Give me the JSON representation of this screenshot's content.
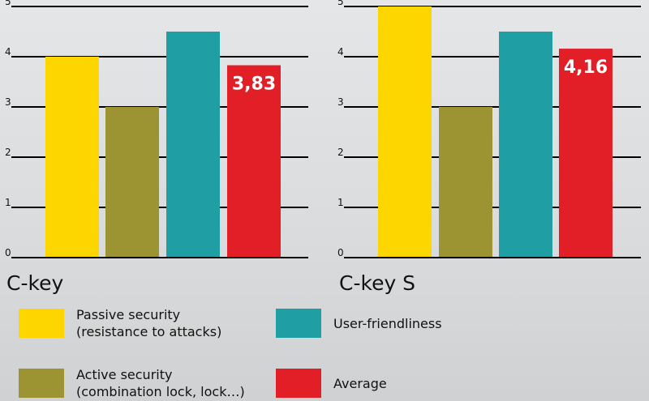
{
  "chart_data": [
    {
      "type": "bar",
      "title": "C-key",
      "categories": [
        "Passive security",
        "Active security",
        "User-friendliness",
        "Average"
      ],
      "values": [
        4.0,
        3.0,
        4.5,
        3.83
      ],
      "colors": [
        "#fdd600",
        "#9c9433",
        "#1f9ea3",
        "#e21f26"
      ],
      "data_labels": [
        "",
        "",
        "",
        "3,83"
      ],
      "ylim": [
        0,
        5
      ],
      "yticks": [
        "0",
        "1",
        "2",
        "3",
        "4",
        "5"
      ],
      "grid": true
    },
    {
      "type": "bar",
      "title": "C-key S",
      "categories": [
        "Passive security",
        "Active security",
        "User-friendliness",
        "Average"
      ],
      "values": [
        5.0,
        3.0,
        4.5,
        4.16
      ],
      "colors": [
        "#fdd600",
        "#9c9433",
        "#1f9ea3",
        "#e21f26"
      ],
      "data_labels": [
        "",
        "",
        "",
        "4,16"
      ],
      "ylim": [
        0,
        5
      ],
      "yticks": [
        "0",
        "1",
        "2",
        "3",
        "4",
        "5"
      ],
      "grid": true
    }
  ],
  "legend": {
    "placement": "bottom",
    "items": [
      {
        "lines": [
          "Passive security",
          "(resistance to attacks)"
        ],
        "color": "#fdd600"
      },
      {
        "lines": [
          "User-friendliness"
        ],
        "color": "#1f9ea3"
      },
      {
        "lines": [
          "Active security",
          "(combination lock, lock…)"
        ],
        "color": "#9c9433"
      },
      {
        "lines": [
          "Average"
        ],
        "color": "#e21f26"
      }
    ]
  }
}
